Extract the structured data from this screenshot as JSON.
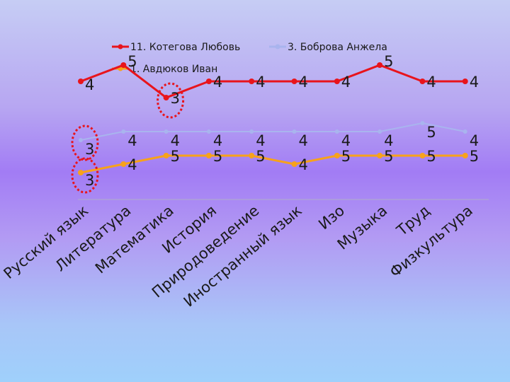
{
  "chart_data": {
    "type": "line",
    "categories": [
      "Русский язык",
      "Литература",
      "Математика",
      "История",
      "Природоведение",
      "Иностранный язык",
      "Изо",
      "Музыка",
      "Труд",
      "Физкультура"
    ],
    "series": [
      {
        "name": "11. Котегова Любовь",
        "color": "#e8141c",
        "values": [
          4,
          5,
          3,
          4,
          4,
          4,
          4,
          5,
          4,
          4
        ]
      },
      {
        "name": "3.    Боброва Анжела",
        "color": "#a9b4ee",
        "values": [
          3,
          4,
          4,
          4,
          4,
          4,
          4,
          4,
          5,
          4
        ]
      },
      {
        "name": "1.    Авдюков Иван",
        "color": "#f7a21b",
        "values": [
          3,
          4,
          5,
          5,
          5,
          4,
          5,
          5,
          5,
          5
        ]
      }
    ],
    "annotations": [
      "circle:series0:2",
      "circle:series1:0",
      "circle:series2:0"
    ],
    "legend_position": "top",
    "grid": false
  }
}
